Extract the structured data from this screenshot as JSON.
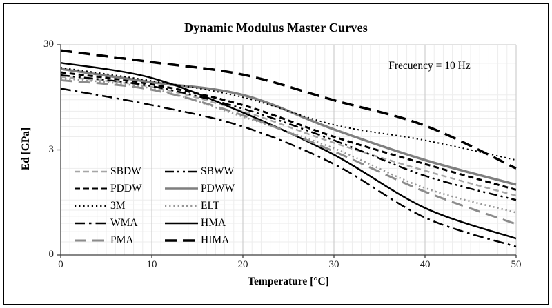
{
  "annotation": {
    "text": "Frecuency = 10 Hz"
  },
  "colors": {
    "black": "#000000",
    "gray": "#7f7f7f",
    "axis": "#3f3f3f",
    "grid_major": "#c6c6c6",
    "grid_minor": "#ededed",
    "border": "#000000"
  },
  "chart_data": {
    "type": "line",
    "title": "Dynamic Modulus Master Curves",
    "xlabel": "Temperature [°C]",
    "ylabel": "Ed [GPa]",
    "x_axis": {
      "min": 0,
      "max": 50,
      "minor_step": 1,
      "ticks": [
        0,
        10,
        20,
        30,
        40,
        50
      ]
    },
    "y_axis": {
      "scale": "log",
      "min": 0.3,
      "max": 30,
      "ticks": [
        {
          "value": 30,
          "label": "30"
        },
        {
          "value": 3,
          "label": "3"
        },
        {
          "value": 0.3,
          "label": "0"
        }
      ],
      "minor_gridlines": [
        20,
        10,
        9,
        8,
        7,
        6,
        5,
        4,
        2,
        1,
        0.9,
        0.8,
        0.7,
        0.6,
        0.5,
        0.4
      ]
    },
    "x": [
      0,
      10,
      20,
      30,
      40,
      50
    ],
    "series": [
      {
        "name": "SBDW",
        "color": "#a6a6a6",
        "style": "dash",
        "width": 2.5,
        "values": [
          14.9,
          11.9,
          7.0,
          3.5,
          1.9,
          1.1
        ]
      },
      {
        "name": "SBWW",
        "color": "#000000",
        "style": "dash-dot-dot",
        "width": 2.5,
        "values": [
          15.4,
          12.1,
          7.4,
          3.7,
          1.7,
          1.0
        ]
      },
      {
        "name": "PDDW",
        "color": "#000000",
        "style": "dash",
        "width": 3,
        "values": [
          16.4,
          12.6,
          8.0,
          4.0,
          2.2,
          1.25
        ]
      },
      {
        "name": "PDWW",
        "color": "#7f7f7f",
        "style": "solid",
        "width": 3.5,
        "values": [
          17.7,
          13.2,
          10.0,
          4.7,
          2.4,
          1.4
        ]
      },
      {
        "name": "3M",
        "color": "#000000",
        "style": "dot",
        "width": 2,
        "values": [
          18.2,
          13.6,
          9.5,
          5.2,
          3.7,
          2.4
        ]
      },
      {
        "name": "ELT",
        "color": "#969696",
        "style": "dot",
        "width": 2.5,
        "values": [
          14.4,
          11.5,
          6.2,
          3.1,
          1.3,
          0.76
        ]
      },
      {
        "name": "WMA",
        "color": "#000000",
        "style": "dash-dot",
        "width": 2.5,
        "values": [
          11.5,
          8.0,
          5.0,
          2.2,
          0.68,
          0.36
        ]
      },
      {
        "name": "HMA",
        "color": "#000000",
        "style": "solid",
        "width": 2.5,
        "values": [
          20.2,
          14.5,
          6.8,
          2.7,
          0.84,
          0.43
        ]
      },
      {
        "name": "PMA",
        "color": "#8c8c8c",
        "style": "long-dash",
        "width": 3,
        "values": [
          13.8,
          11.2,
          6.4,
          2.9,
          1.2,
          0.59
        ]
      },
      {
        "name": "HIMA",
        "color": "#000000",
        "style": "long-dash",
        "width": 3.5,
        "values": [
          26.5,
          20.5,
          15.6,
          8.9,
          5.1,
          2.0
        ]
      }
    ],
    "legend": {
      "position": "lower-left",
      "columns": [
        [
          "SBDW",
          "PDDW",
          "3M",
          "WMA",
          "PMA"
        ],
        [
          "SBWW",
          "PDWW",
          "ELT",
          "HMA",
          "HIMA"
        ]
      ]
    }
  }
}
